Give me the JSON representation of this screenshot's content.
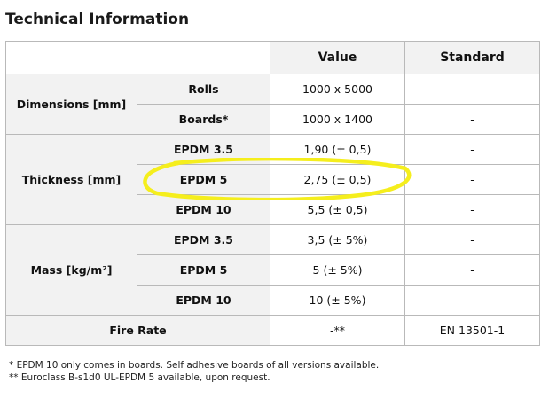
{
  "title": "Technical Information",
  "header": {
    "col1": "",
    "col2": "",
    "value": "Value",
    "standard": "Standard"
  },
  "groups": {
    "dimensions": {
      "label": "Dimensions [mm]",
      "rows": [
        {
          "sub": "Rolls",
          "value": "1000 x 5000",
          "standard": "-"
        },
        {
          "sub": "Boards*",
          "value": "1000 x 1400",
          "standard": "-"
        }
      ]
    },
    "thickness": {
      "label": "Thickness [mm]",
      "rows": [
        {
          "sub": "EPDM 3.5",
          "value": "1,90 (± 0,5)",
          "standard": "-"
        },
        {
          "sub": "EPDM 5",
          "value": "2,75 (± 0,5)",
          "standard": "-"
        },
        {
          "sub": "EPDM 10",
          "value": "5,5 (± 0,5)",
          "standard": "-"
        }
      ]
    },
    "mass": {
      "label": "Mass [kg/m²]",
      "rows": [
        {
          "sub": "EPDM 3.5",
          "value": "3,5 (± 5%)",
          "standard": "-"
        },
        {
          "sub": "EPDM 5",
          "value": "5 (± 5%)",
          "standard": "-"
        },
        {
          "sub": "EPDM 10",
          "value": "10 (± 5%)",
          "standard": "-"
        }
      ]
    }
  },
  "fire_rate": {
    "label": "Fire Rate",
    "value": "-**",
    "standard": "EN 13501-1"
  },
  "notes": [
    "* EPDM 10 only comes in boards. Self adhesive boards of all versions available.",
    "** Euroclass B-s1d0 UL-EPDM 5 available, upon request."
  ],
  "colors": {
    "highlight": "#f5ee1d",
    "border": "#b9b9b9",
    "label_bg": "#f2f2f2"
  }
}
